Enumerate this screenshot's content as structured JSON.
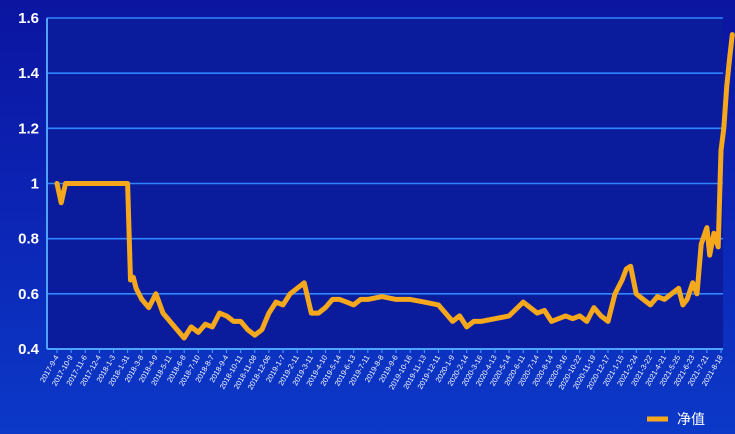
{
  "chart_data": {
    "type": "line",
    "title": "",
    "xlabel": "",
    "ylabel": "",
    "ylim": [
      0.4,
      1.6
    ],
    "y_ticks": [
      "1.6",
      "1.4",
      "1.2",
      "1",
      "0.8",
      "0.6",
      "0.4"
    ],
    "grid": "horizontal",
    "legend_position": "bottom-right",
    "x_tick_labels": [
      "2017-9-4",
      "2017-10-9",
      "2017-11-6",
      "2017-12-4",
      "2018-1-3",
      "2018-1-31",
      "2018-3-8",
      "2018-4-9",
      "2018-5-11",
      "2018-6-8",
      "2018-7-10",
      "2018-8-7",
      "2018-9-4",
      "2018-10-11",
      "2018-11-08",
      "2018-12-06",
      "2019-1-7",
      "2019-2-11",
      "2019-3-11",
      "2019-4-10",
      "2019-5-14",
      "2019-6-13",
      "2019-7-11",
      "2019-8-8",
      "2019-9-6",
      "2019-10-16",
      "2019-11-13",
      "2019-12-11",
      "2020-1-9",
      "2020-2-14",
      "2020-3-16",
      "2020-4-13",
      "2020-5-14",
      "2020-6-11",
      "2020-7-14",
      "2020-8-14",
      "2020-9-16",
      "2020-10-22",
      "2020-11-19",
      "2020-12-17",
      "2021-1-15",
      "2021-2-24",
      "2021-3-22",
      "2021-4-21",
      "2021-5-25",
      "2021-6-23",
      "2021-7-21",
      "2021-8-18"
    ],
    "series": [
      {
        "name": "净值",
        "color": "#f5a81c",
        "x": [
          0,
          0.3,
          0.6,
          1.0,
          1.5,
          2,
          3,
          4,
          5,
          5.2,
          5.4,
          5.6,
          6.0,
          6.5,
          7.0,
          7.5,
          8.0,
          8.5,
          9.0,
          9.5,
          10,
          10.5,
          11,
          11.5,
          12,
          12.5,
          13,
          13.5,
          14,
          14.5,
          15,
          15.5,
          16,
          16.5,
          17,
          17.5,
          18,
          18.5,
          19,
          19.5,
          20,
          20.5,
          21,
          21.5,
          22,
          23,
          24,
          25,
          26,
          27,
          28,
          28.5,
          29,
          29.5,
          30,
          31,
          32,
          33,
          34,
          34.5,
          35,
          35.5,
          36,
          36.5,
          37,
          37.5,
          38,
          38.5,
          39,
          39.5,
          40,
          40.3,
          40.6,
          41,
          41.5,
          42,
          42.5,
          43,
          43.5,
          44,
          44.3,
          44.6,
          45,
          45.3,
          45.6,
          46,
          46.2,
          46.5,
          46.8,
          47.0,
          47.2,
          47.4,
          47.6,
          47.8
        ],
        "values": [
          1.0,
          0.93,
          1.0,
          1.0,
          1.0,
          1.0,
          1.0,
          1.0,
          1.0,
          0.65,
          0.66,
          0.62,
          0.58,
          0.55,
          0.6,
          0.53,
          0.5,
          0.47,
          0.44,
          0.48,
          0.46,
          0.49,
          0.48,
          0.53,
          0.52,
          0.5,
          0.5,
          0.47,
          0.45,
          0.47,
          0.53,
          0.57,
          0.56,
          0.6,
          0.62,
          0.64,
          0.53,
          0.53,
          0.55,
          0.58,
          0.58,
          0.57,
          0.56,
          0.58,
          0.58,
          0.59,
          0.58,
          0.58,
          0.57,
          0.56,
          0.5,
          0.52,
          0.48,
          0.5,
          0.5,
          0.51,
          0.52,
          0.57,
          0.53,
          0.54,
          0.5,
          0.51,
          0.52,
          0.51,
          0.52,
          0.5,
          0.55,
          0.52,
          0.5,
          0.6,
          0.65,
          0.69,
          0.7,
          0.6,
          0.58,
          0.56,
          0.59,
          0.58,
          0.6,
          0.62,
          0.56,
          0.58,
          0.64,
          0.6,
          0.78,
          0.84,
          0.74,
          0.82,
          0.77,
          1.12,
          1.2,
          1.35,
          1.45,
          1.54
        ]
      }
    ]
  }
}
